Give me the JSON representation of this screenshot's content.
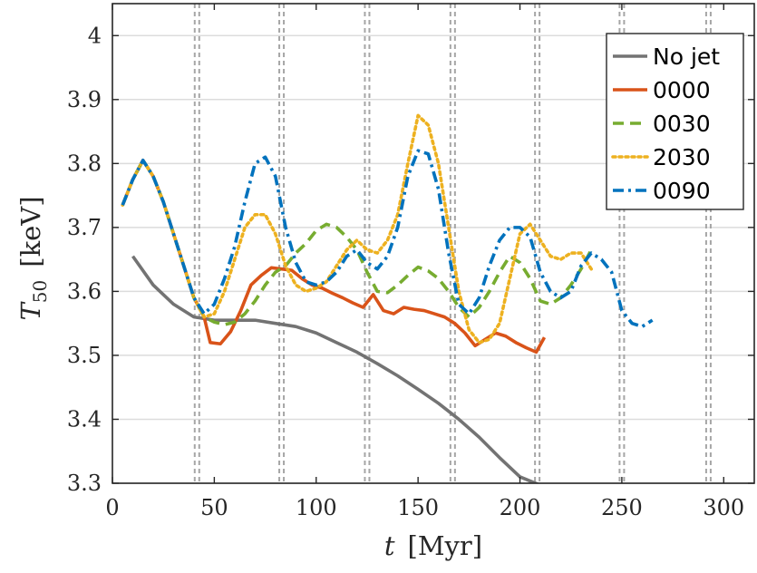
{
  "chart_data": {
    "type": "line",
    "title": "",
    "xlabel_var": "t",
    "xlabel_unit": "[Myr]",
    "ylabel_var": "T",
    "ylabel_sub": "50",
    "ylabel_unit": "[keV]",
    "xlim": [
      0,
      315
    ],
    "ylim": [
      3.3,
      4.05
    ],
    "xticks": [
      0,
      50,
      100,
      150,
      200,
      250,
      300
    ],
    "yticks": [
      3.3,
      3.4,
      3.5,
      3.6,
      3.7,
      3.8,
      3.9,
      4.0
    ],
    "xtick_labels": [
      "0",
      "50",
      "100",
      "150",
      "200",
      "250",
      "300"
    ],
    "ytick_labels": [
      "3.3",
      "3.4",
      "3.5",
      "3.6",
      "3.7",
      "3.8",
      "3.9",
      "4"
    ],
    "grid": true,
    "legend_position": "top-right",
    "vertical_dashed_lines": [
      41.5,
      83,
      125,
      167,
      208.5,
      250,
      292.5
    ],
    "series": [
      {
        "name": "No jet",
        "color": "#737373",
        "dash": "solid",
        "x": [
          10,
          20,
          30,
          40,
          50,
          60,
          70,
          80,
          90,
          100,
          110,
          120,
          130,
          140,
          150,
          160,
          170,
          180,
          190,
          200,
          210
        ],
        "y": [
          3.655,
          3.61,
          3.58,
          3.56,
          3.555,
          3.555,
          3.555,
          3.55,
          3.545,
          3.535,
          3.52,
          3.505,
          3.487,
          3.468,
          3.447,
          3.425,
          3.4,
          3.372,
          3.34,
          3.31,
          3.297
        ]
      },
      {
        "name": "0000",
        "color": "#D95319",
        "dash": "solid",
        "x": [
          5,
          10,
          15,
          20,
          25,
          30,
          35,
          40,
          45,
          48,
          53,
          58,
          63,
          68,
          73,
          78,
          83,
          88,
          93,
          98,
          103,
          108,
          113,
          118,
          123,
          128,
          133,
          138,
          143,
          148,
          153,
          158,
          163,
          168,
          173,
          178,
          183,
          188,
          193,
          198,
          203,
          208,
          212
        ],
        "y": [
          3.735,
          3.775,
          3.805,
          3.78,
          3.74,
          3.69,
          3.64,
          3.59,
          3.56,
          3.52,
          3.518,
          3.537,
          3.57,
          3.61,
          3.625,
          3.637,
          3.635,
          3.633,
          3.62,
          3.61,
          3.605,
          3.597,
          3.59,
          3.582,
          3.575,
          3.595,
          3.57,
          3.565,
          3.575,
          3.572,
          3.57,
          3.565,
          3.56,
          3.55,
          3.535,
          3.515,
          3.525,
          3.535,
          3.53,
          3.52,
          3.512,
          3.505,
          3.528
        ]
      },
      {
        "name": "0030",
        "color": "#77AC30",
        "dash": "dash",
        "x": [
          5,
          10,
          15,
          20,
          25,
          30,
          35,
          40,
          45,
          50,
          55,
          60,
          65,
          70,
          75,
          80,
          85,
          90,
          95,
          100,
          105,
          110,
          115,
          120,
          125,
          130,
          135,
          140,
          145,
          150,
          155,
          160,
          165,
          170,
          175,
          180,
          185,
          190,
          195,
          200,
          205,
          210,
          215,
          220,
          225,
          230,
          235
        ],
        "y": [
          3.735,
          3.775,
          3.805,
          3.78,
          3.74,
          3.69,
          3.64,
          3.59,
          3.56,
          3.552,
          3.548,
          3.552,
          3.565,
          3.585,
          3.61,
          3.63,
          3.64,
          3.66,
          3.675,
          3.695,
          3.705,
          3.7,
          3.685,
          3.665,
          3.63,
          3.6,
          3.598,
          3.61,
          3.625,
          3.638,
          3.632,
          3.62,
          3.6,
          3.575,
          3.56,
          3.575,
          3.6,
          3.63,
          3.655,
          3.645,
          3.62,
          3.585,
          3.58,
          3.59,
          3.61,
          3.635,
          3.665
        ]
      },
      {
        "name": "2030",
        "color": "#EDB120",
        "dash": "dot",
        "x": [
          5,
          10,
          15,
          20,
          25,
          30,
          35,
          40,
          45,
          50,
          55,
          60,
          65,
          70,
          75,
          80,
          85,
          90,
          95,
          100,
          105,
          110,
          115,
          120,
          125,
          130,
          135,
          140,
          145,
          150,
          155,
          160,
          165,
          170,
          175,
          180,
          185,
          190,
          195,
          200,
          205,
          210,
          215,
          220,
          225,
          230,
          235
        ],
        "y": [
          3.735,
          3.775,
          3.805,
          3.78,
          3.74,
          3.69,
          3.64,
          3.59,
          3.56,
          3.565,
          3.6,
          3.65,
          3.7,
          3.72,
          3.72,
          3.69,
          3.64,
          3.61,
          3.6,
          3.605,
          3.615,
          3.64,
          3.665,
          3.68,
          3.665,
          3.66,
          3.68,
          3.72,
          3.8,
          3.875,
          3.86,
          3.8,
          3.7,
          3.6,
          3.54,
          3.52,
          3.525,
          3.55,
          3.62,
          3.69,
          3.705,
          3.68,
          3.655,
          3.65,
          3.66,
          3.66,
          3.635
        ]
      },
      {
        "name": "0090",
        "color": "#0072BD",
        "dash": "dashdot",
        "x": [
          5,
          10,
          15,
          20,
          25,
          30,
          35,
          40,
          45,
          50,
          55,
          60,
          65,
          70,
          75,
          80,
          85,
          90,
          95,
          100,
          105,
          110,
          115,
          120,
          125,
          130,
          135,
          140,
          145,
          150,
          155,
          160,
          165,
          170,
          175,
          180,
          185,
          190,
          195,
          200,
          205,
          210,
          215,
          220,
          225,
          230,
          235,
          240,
          245,
          250,
          255,
          260,
          265
        ],
        "y": [
          3.735,
          3.775,
          3.805,
          3.78,
          3.74,
          3.69,
          3.64,
          3.59,
          3.565,
          3.58,
          3.62,
          3.67,
          3.74,
          3.8,
          3.81,
          3.78,
          3.7,
          3.645,
          3.615,
          3.61,
          3.615,
          3.63,
          3.655,
          3.665,
          3.645,
          3.635,
          3.655,
          3.7,
          3.78,
          3.82,
          3.815,
          3.76,
          3.66,
          3.58,
          3.565,
          3.59,
          3.64,
          3.68,
          3.7,
          3.7,
          3.685,
          3.63,
          3.6,
          3.59,
          3.6,
          3.64,
          3.66,
          3.65,
          3.63,
          3.57,
          3.55,
          3.545,
          3.555
        ]
      }
    ]
  }
}
